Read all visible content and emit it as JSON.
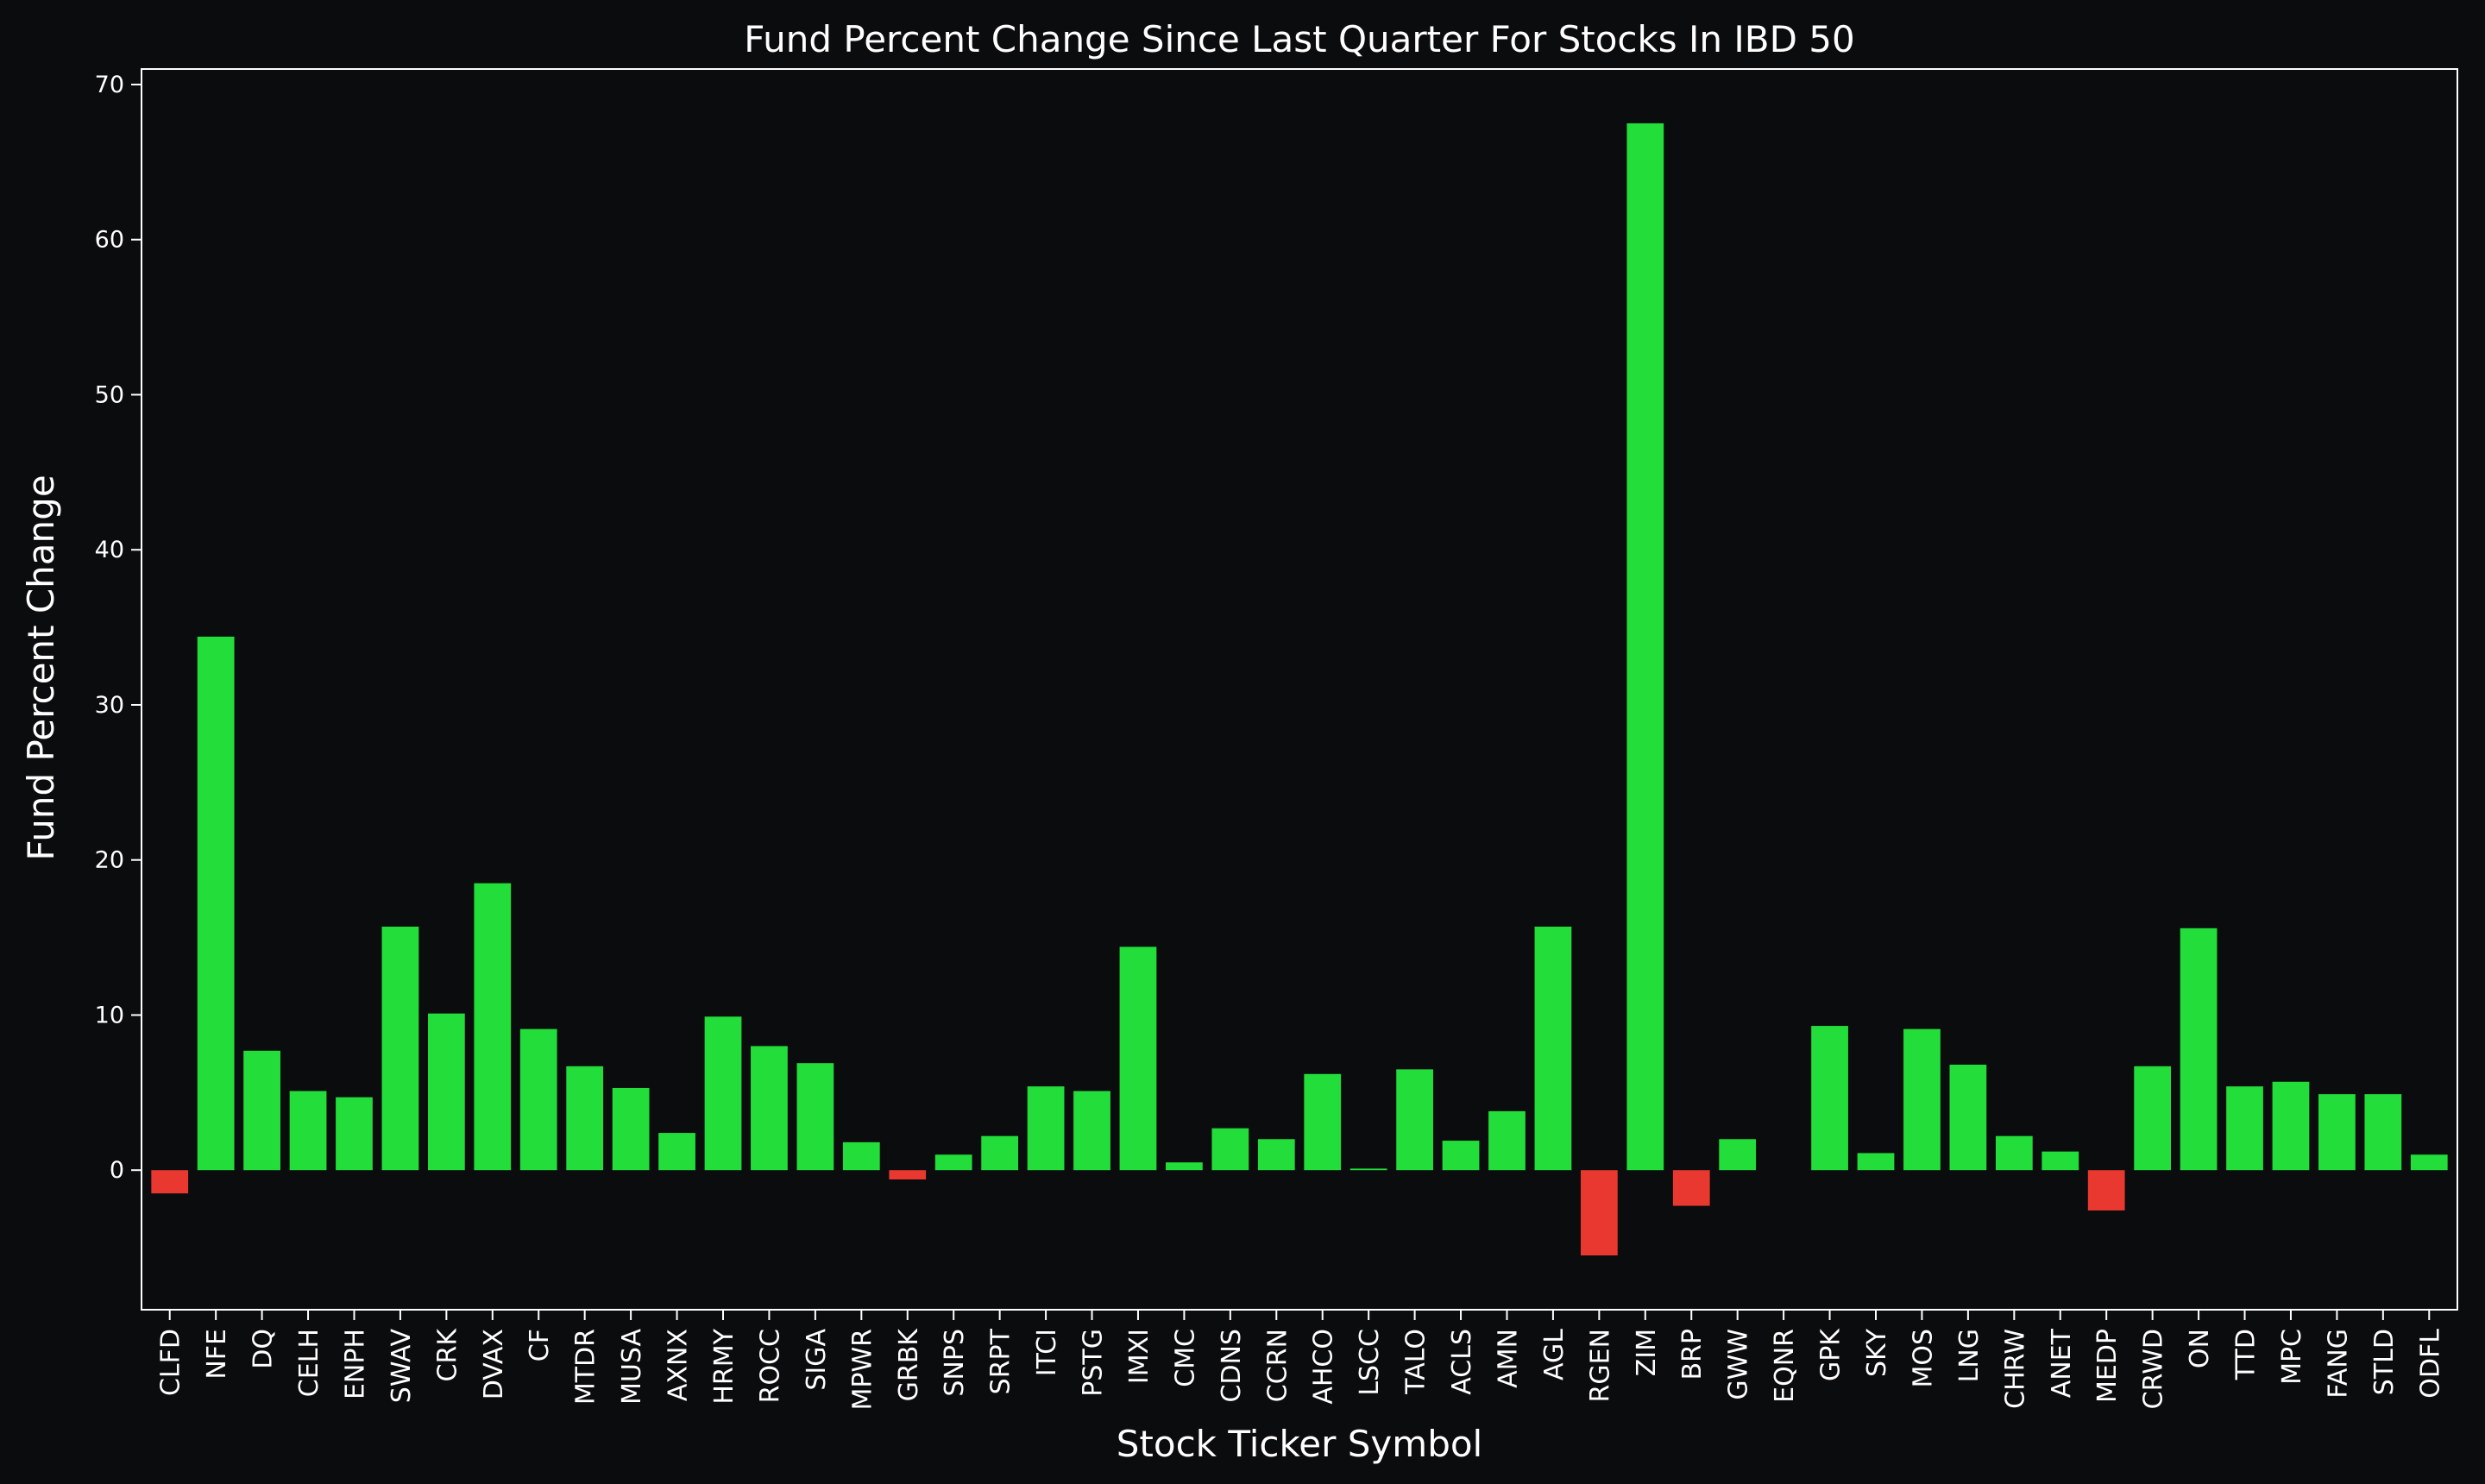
{
  "chart_data": {
    "type": "bar",
    "title": "Fund Percent Change Since Last Quarter For Stocks In IBD 50",
    "xlabel": "Stock Ticker Symbol",
    "ylabel": "Fund Percent Change",
    "ylim": [
      -9,
      71
    ],
    "yticks": [
      0,
      10,
      20,
      30,
      40,
      50,
      60,
      70
    ],
    "grid": false,
    "colors": {
      "positive": "#22dd3a",
      "negative": "#e8382f",
      "background": "#0b0c0e",
      "text": "#ffffff"
    },
    "categories": [
      "CLFD",
      "NFE",
      "DQ",
      "CELH",
      "ENPH",
      "SWAV",
      "CRK",
      "DVAX",
      "CF",
      "MTDR",
      "MUSA",
      "AXNX",
      "HRMY",
      "ROCC",
      "SIGA",
      "MPWR",
      "GRBK",
      "SNPS",
      "SRPT",
      "ITCI",
      "PSTG",
      "IMXI",
      "CMC",
      "CDNS",
      "CCRN",
      "AHCO",
      "LSCC",
      "TALO",
      "ACLS",
      "AMN",
      "AGL",
      "RGEN",
      "ZIM",
      "BRP",
      "GWW",
      "EQNR",
      "GPK",
      "SKY",
      "MOS",
      "LNG",
      "CHRW",
      "ANET",
      "MEDP",
      "CRWD",
      "ON",
      "TTD",
      "MPC",
      "FANG",
      "STLD",
      "ODFL"
    ],
    "values": [
      -1.5,
      34.4,
      7.7,
      5.1,
      4.7,
      15.7,
      10.1,
      18.5,
      9.1,
      6.7,
      5.3,
      2.4,
      9.9,
      8.0,
      6.9,
      1.8,
      -0.6,
      1.0,
      2.2,
      5.4,
      5.1,
      14.4,
      0.5,
      2.7,
      2.0,
      6.2,
      0.1,
      6.5,
      1.9,
      3.8,
      15.7,
      -5.5,
      67.5,
      -2.3,
      2.0,
      0.0,
      9.3,
      1.1,
      9.1,
      6.8,
      2.2,
      1.2,
      -2.6,
      6.7,
      15.6,
      5.4,
      5.7,
      4.9,
      4.9,
      1.0
    ]
  }
}
